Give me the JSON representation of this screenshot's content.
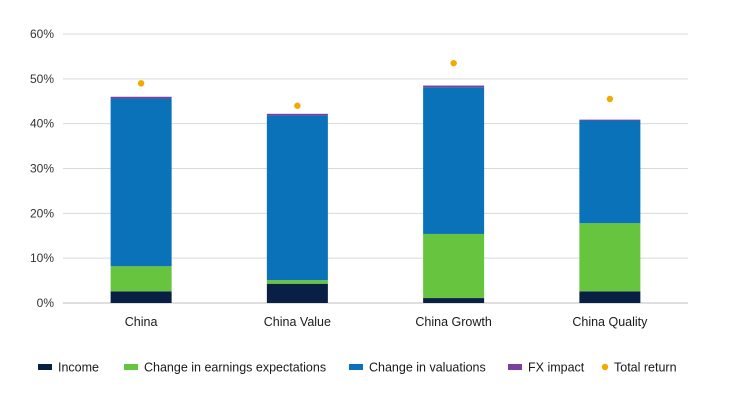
{
  "chart_data": {
    "type": "bar",
    "stacked": true,
    "categories": [
      "China",
      "China Value",
      "China Growth",
      "China Quality"
    ],
    "y_unit": "%",
    "ylim": [
      0,
      60
    ],
    "yticks": [
      0,
      10,
      20,
      30,
      40,
      50,
      60
    ],
    "ytick_labels": [
      "0%",
      "10%",
      "20%",
      "30%",
      "40%",
      "50%",
      "60%"
    ],
    "grid": true,
    "legend_position": "bottom",
    "series": [
      {
        "name": "Income",
        "kind": "bar",
        "color": "#0a1f44",
        "values": [
          2.6,
          4.3,
          1.1,
          2.6
        ]
      },
      {
        "name": "Change in earnings expectations",
        "kind": "bar",
        "color": "#66c43f",
        "values": [
          5.6,
          0.8,
          14.3,
          15.2
        ]
      },
      {
        "name": "Change in valuations",
        "kind": "bar",
        "color": "#0a72b8",
        "values": [
          37.4,
          36.7,
          32.7,
          22.9
        ]
      },
      {
        "name": "FX impact",
        "kind": "bar",
        "color": "#7b3f9e",
        "values": [
          0.4,
          0.4,
          0.4,
          0.2
        ]
      },
      {
        "name": "Total return",
        "kind": "point",
        "color": "#f2a900",
        "values": [
          49.0,
          44.0,
          53.5,
          45.5
        ]
      }
    ]
  }
}
